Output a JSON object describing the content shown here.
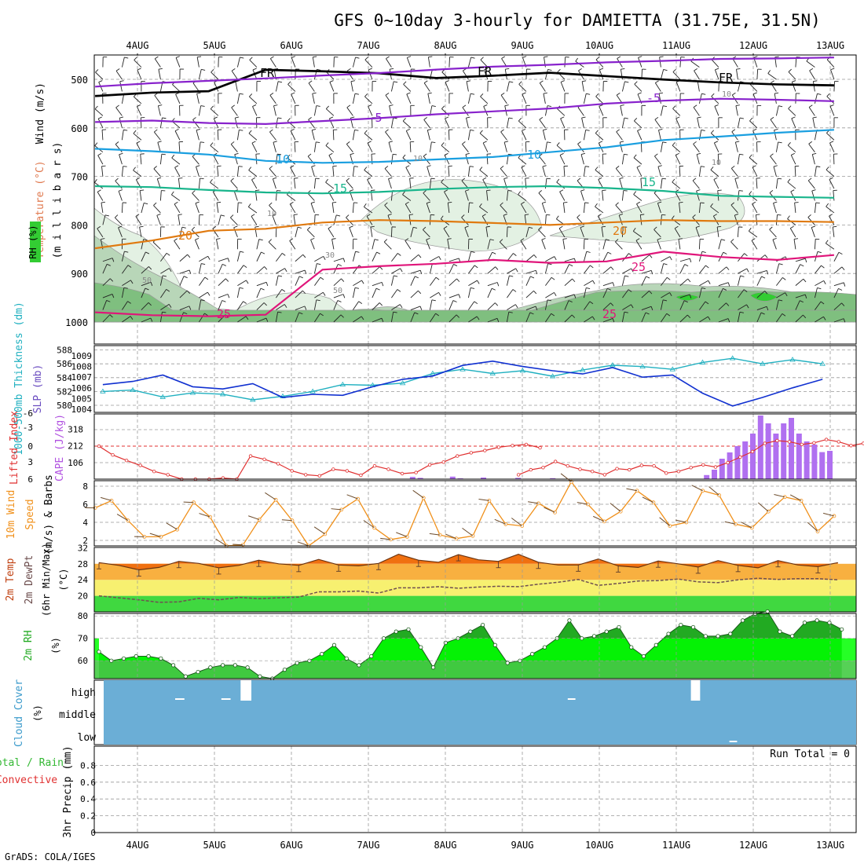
{
  "title": "GFS 0~10day 3-hourly for DAMIETTA (31.75E, 31.5N)",
  "credit": "GrADS: COLA/IGES",
  "run_total": "Run Total = 0",
  "colors": {
    "rh_light": "#e3f1e3",
    "rh_mid": "#b8d6b8",
    "rh_dark": "#7fbf7f",
    "rh_green": "#33cc33",
    "fr": "#000000",
    "t_m5": "#8822cc",
    "t_10": "#1a9fe0",
    "t_15": "#19b58c",
    "t_20": "#e07a10",
    "t_25": "#e0157a",
    "slp": "#1030d0",
    "thickness": "#20b0c0",
    "lifted": "#e03030",
    "cape": "#b070f0",
    "wind10": "#f0901a",
    "barb": "#6b4a2a",
    "temp_fill": "#f07010",
    "temp_band1": "#f8b040",
    "temp_band2": "#f7f070",
    "temp_band3": "#40d840",
    "dewpt": "#705050",
    "rh2_dark": "#22aa22",
    "rh2_bright": "#00ff00",
    "rh2_base": "#44cc44",
    "cloud": "#6baed6"
  },
  "chart_data": {
    "dates": [
      "4AUG",
      "5AUG",
      "6AUG",
      "7AUG",
      "8AUG",
      "9AUG",
      "10AUG",
      "11AUG",
      "12AUG",
      "13AUG"
    ],
    "panels": [
      {
        "type": "area",
        "name": "upper_air",
        "ylabel_parts": [
          "RH (%)",
          "Temperature (°C)",
          "Wind (m/s)",
          "(m i l l i b a r s)"
        ],
        "y_ticks": [
          500,
          600,
          700,
          800,
          900,
          1000
        ],
        "ylim": [
          1000,
          450
        ],
        "contour_labels": [
          "FR",
          "-5",
          "10",
          "15",
          "20",
          "25",
          "10",
          "30",
          "50"
        ],
        "isotherms": [
          {
            "label": "FR",
            "pressure": [
              534,
              527,
              524,
              480,
              483,
              487,
              497,
              492,
              486,
              493,
              500,
              506,
              510,
              512
            ]
          },
          {
            "label": "-5",
            "pressure": [
              515,
              508,
              503,
              498,
              492,
              487,
              480,
              474,
              470,
              465,
              462,
              458,
              457,
              455
            ]
          },
          {
            "label": "5",
            "pressure": [
              588,
              585,
              590,
              592,
              586,
              580,
              572,
              566,
              560,
              550,
              544,
              540,
              542,
              545
            ]
          },
          {
            "label": "10",
            "pressure": [
              643,
              648,
              655,
              668,
              672,
              670,
              665,
              660,
              650,
              640,
              625,
              618,
              610,
              604
            ]
          },
          {
            "label": "15",
            "pressure": [
              720,
              722,
              728,
              733,
              735,
              732,
              726,
              722,
              720,
              724,
              730,
              740,
              742,
              744
            ]
          },
          {
            "label": "20",
            "pressure": [
              848,
              832,
              812,
              808,
              795,
              790,
              792,
              796,
              800,
              795,
              790,
              792,
              792,
              794
            ]
          },
          {
            "label": "25",
            "pressure": [
              980,
              986,
              988,
              985,
              892,
              885,
              880,
              872,
              878,
              875,
              855,
              866,
              872,
              862
            ]
          }
        ]
      },
      {
        "type": "line",
        "name": "slp_thickness",
        "ylabel_left": "1000-500mb Thickness (dm)",
        "ylabel_right": "SLP (mb)",
        "y_ticks_left": [
          580,
          582,
          584,
          586,
          588
        ],
        "y_ticks_right": [
          1004,
          1005,
          1006,
          1007,
          1008,
          1009
        ],
        "series": [
          {
            "name": "SLP",
            "values": [
              1006.3,
              1006.6,
              1007.2,
              1006.1,
              1005.9,
              1006.4,
              1005.1,
              1005.4,
              1005.3,
              1006.1,
              1006.8,
              1007.1,
              1008.1,
              1008.5,
              1008.0,
              1007.6,
              1007.3,
              1007.9,
              1007.0,
              1007.2,
              1005.5,
              1004.3,
              1005.1,
              1006.0,
              1006.8
            ]
          },
          {
            "name": "Thickness",
            "values": [
              582.0,
              582.2,
              581.2,
              581.8,
              581.6,
              580.8,
              581.3,
              582.0,
              583.0,
              582.9,
              583.2,
              584.6,
              585.2,
              584.6,
              585.0,
              584.2,
              585.1,
              585.8,
              585.6,
              585.2,
              586.2,
              586.8,
              586.0,
              586.6,
              586.0
            ]
          }
        ]
      },
      {
        "type": "bar",
        "name": "lifted_cape",
        "ylabel_left": "Lifted Index",
        "ylabel_right": "CAPE (J/kg)",
        "y_ticks_left": [
          "-6",
          "-3",
          "0",
          "3",
          "6"
        ],
        "y_ticks_right": [
          106,
          212,
          318
        ],
        "lifted_index": [
          0.0,
          1.6,
          2.6,
          3.5,
          4.6,
          5.2,
          6.6,
          6.7,
          7.4,
          5.8,
          6.4,
          1.8,
          2.4,
          3.2,
          4.5,
          5.2,
          5.4,
          4.2,
          4.5,
          5.3,
          3.6,
          4.2,
          5.0,
          4.8,
          3.4,
          2.9,
          1.8,
          1.2,
          0.8,
          0.2,
          -0.1,
          -0.3,
          0.3
        ],
        "cape_bars": [
          {
            "t": 4.0,
            "v": 14
          },
          {
            "t": 4.1,
            "v": 8
          },
          {
            "t": 4.6,
            "v": 16
          },
          {
            "t": 4.7,
            "v": 5
          },
          {
            "t": 5.1,
            "v": 10
          },
          {
            "t": 5.6,
            "v": 8
          },
          {
            "t": 5.9,
            "v": 6
          },
          {
            "t": 7.5,
            "v": 26
          },
          {
            "t": 7.6,
            "v": 60
          },
          {
            "t": 7.8,
            "v": 130
          },
          {
            "t": 7.9,
            "v": 170
          },
          {
            "t": 8.0,
            "v": 210
          },
          {
            "t": 8.1,
            "v": 240
          },
          {
            "t": 8.2,
            "v": 290
          },
          {
            "t": 8.3,
            "v": 405
          },
          {
            "t": 8.4,
            "v": 355
          },
          {
            "t": 8.5,
            "v": 290
          },
          {
            "t": 8.6,
            "v": 355
          },
          {
            "t": 8.7,
            "v": 390
          },
          {
            "t": 8.8,
            "v": 290
          },
          {
            "t": 8.9,
            "v": 240
          },
          {
            "t": 9.0,
            "v": 220
          },
          {
            "t": 9.1,
            "v": 172
          },
          {
            "t": 9.2,
            "v": 180
          }
        ]
      },
      {
        "type": "line",
        "name": "wind10m",
        "ylabel": "10m Wind Speed (m/s) & Barbs",
        "y_ticks": [
          2,
          4,
          6,
          8
        ],
        "values": [
          5.6,
          6.4,
          4.2,
          2.4,
          2.4,
          3.2,
          6.2,
          4.6,
          1.4,
          1.5,
          4.3,
          6.5,
          4.2,
          1.4,
          2.7,
          5.4,
          6.6,
          3.4,
          2.1,
          2.4,
          6.7,
          2.6,
          2.2,
          2.5,
          6.4,
          3.8,
          3.6,
          6.1,
          5.1,
          8.5,
          6.0,
          4.1,
          5.2,
          7.5,
          6.2,
          3.6,
          4.0,
          7.5,
          7.0,
          3.8,
          3.4,
          5.2,
          6.8,
          6.4,
          3.0,
          4.7
        ]
      },
      {
        "type": "area",
        "name": "temp2m",
        "ylabel": "2m Temp 2m DewPt (6hr Min/Max) (°C)",
        "y_ticks": [
          20,
          24,
          28,
          32
        ],
        "temperature": [
          28.3,
          27.6,
          26.5,
          27.1,
          28.6,
          28.1,
          27.0,
          27.6,
          28.9,
          28.0,
          27.6,
          29.1,
          27.7,
          27.5,
          28.1,
          30.4,
          28.9,
          28.4,
          30.3,
          29.0,
          28.6,
          30.4,
          28.4,
          27.7,
          27.7,
          29.2,
          27.5,
          27.1,
          28.7,
          28.0,
          27.2,
          28.8,
          27.6,
          27.0,
          28.8,
          27.7,
          27.3,
          28.3
        ],
        "dewpoint": [
          20.0,
          19.5,
          19.0,
          18.4,
          18.5,
          19.4,
          19.0,
          19.6,
          19.3,
          19.5,
          19.7,
          21.0,
          21.0,
          21.2,
          20.7,
          22.0,
          22.0,
          22.3,
          21.9,
          22.2,
          22.4,
          22.3,
          22.9,
          23.4,
          24.1,
          22.6,
          23.1,
          23.7,
          23.8,
          24.2,
          23.5,
          23.3,
          24.0,
          24.4,
          24.1,
          24.3,
          24.3,
          24.0
        ]
      },
      {
        "type": "area",
        "name": "rh2m",
        "ylabel": "2m RH (%)",
        "y_ticks": [
          60,
          70,
          80
        ],
        "values": [
          64,
          60,
          61,
          62,
          62,
          61,
          58,
          53,
          55,
          57,
          58,
          58,
          57,
          53,
          52,
          56,
          59,
          60,
          63,
          67,
          61,
          58,
          62,
          70,
          73,
          74,
          66,
          57,
          68,
          70,
          73,
          76,
          67,
          59,
          60,
          63,
          66,
          70,
          78,
          70,
          71,
          73,
          75,
          66,
          62,
          67,
          72,
          76,
          75,
          71,
          71,
          72,
          78,
          81,
          82,
          73,
          71,
          77,
          78,
          77,
          74
        ]
      },
      {
        "type": "bar",
        "name": "cloud_cover",
        "ylabel": "Cloud Cover (%)",
        "y_ticks": [
          "high",
          "middle",
          "low"
        ],
        "segments": [
          {
            "level": "high",
            "t": 1.0,
            "w": 0.12
          },
          {
            "level": "high",
            "t": 1.6,
            "w": 0.12
          },
          {
            "level": "high",
            "t": 1.85,
            "w": 0.14,
            "tall": true
          },
          {
            "level": "high",
            "t": 6.1,
            "w": 0.1
          },
          {
            "level": "high",
            "t": 7.7,
            "w": 0.12,
            "tall": true
          },
          {
            "level": "low",
            "t": 8.2,
            "w": 0.1
          }
        ]
      },
      {
        "type": "bar",
        "name": "precip",
        "ylabel_parts": [
          "Total / Rain",
          "Convective",
          "3hr Precip (mm)"
        ],
        "y_ticks": [
          0,
          0.2,
          0.4,
          0.6,
          0.8
        ],
        "values": []
      }
    ]
  }
}
